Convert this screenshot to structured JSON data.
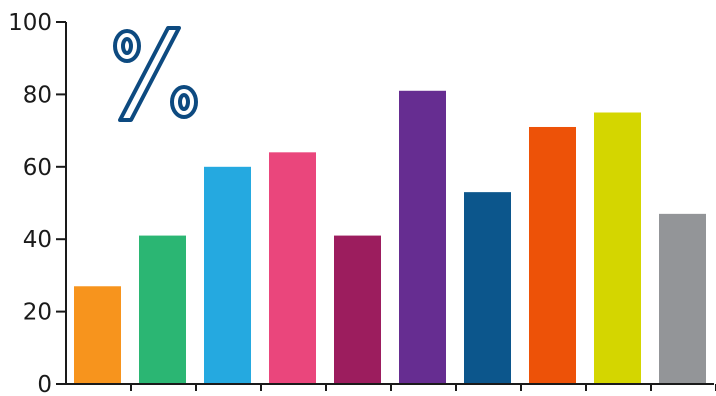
{
  "chart_data": {
    "type": "bar",
    "title": "",
    "xlabel": "",
    "ylabel": "",
    "ylim": [
      0,
      100
    ],
    "yticks": [
      "0",
      "20",
      "40",
      "60",
      "80",
      "100"
    ],
    "grid": false,
    "legend": "none",
    "unit_symbol": "%",
    "unit_symbol_color": "#0d4a80",
    "values": [
      27,
      41,
      60,
      64,
      41,
      81,
      53,
      71,
      75,
      47
    ],
    "colors": [
      "#f7941d",
      "#2bb673",
      "#25a9e0",
      "#ea467c",
      "#9c1d5e",
      "#662d91",
      "#0c568c",
      "#ed5208",
      "#d4d600",
      "#939598"
    ]
  }
}
